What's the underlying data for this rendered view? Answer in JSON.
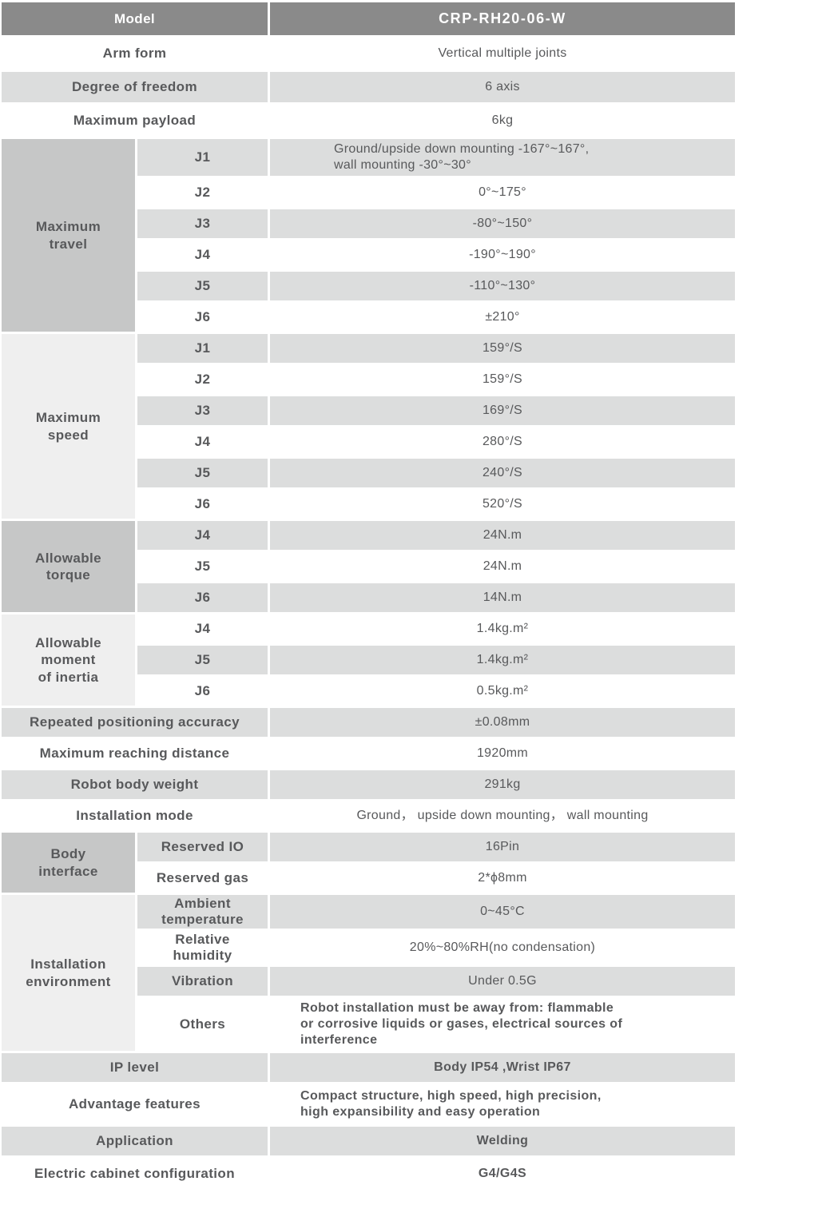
{
  "colors": {
    "header_bg": "#8a8a8a",
    "header_text": "#ffffff",
    "stripe_bg": "#dcdddd",
    "group_dark_bg": "#c6c7c7",
    "group_light_bg": "#efefef",
    "text": "#58595b"
  },
  "table": {
    "header": {
      "label": "Model",
      "value": "CRP-RH20-06-W"
    },
    "arm_form": {
      "label": "Arm form",
      "value": "Vertical multiple joints"
    },
    "degree_of_freedom": {
      "label": "Degree of freedom",
      "value": "6 axis"
    },
    "maximum_payload": {
      "label": "Maximum payload",
      "value": "6kg"
    },
    "maximum_travel": {
      "group": "Maximum\ntravel",
      "rows": [
        {
          "label": "J1",
          "value": "Ground/upside down mounting -167°~167°,\nwall mounting -30°~30°"
        },
        {
          "label": "J2",
          "value": "0°~175°"
        },
        {
          "label": "J3",
          "value": "-80°~150°"
        },
        {
          "label": "J4",
          "value": "-190°~190°"
        },
        {
          "label": "J5",
          "value": "-110°~130°"
        },
        {
          "label": "J6",
          "value": "±210°"
        }
      ]
    },
    "maximum_speed": {
      "group": "Maximum\nspeed",
      "rows": [
        {
          "label": "J1",
          "value": "159°/S"
        },
        {
          "label": "J2",
          "value": "159°/S"
        },
        {
          "label": "J3",
          "value": "169°/S"
        },
        {
          "label": "J4",
          "value": "280°/S"
        },
        {
          "label": "J5",
          "value": "240°/S"
        },
        {
          "label": "J6",
          "value": "520°/S"
        }
      ]
    },
    "allowable_torque": {
      "group": "Allowable\ntorque",
      "rows": [
        {
          "label": "J4",
          "value": "24N.m"
        },
        {
          "label": "J5",
          "value": "24N.m"
        },
        {
          "label": "J6",
          "value": "14N.m"
        }
      ]
    },
    "allowable_moment_of_inertia": {
      "group": "Allowable\nmoment\nof inertia",
      "rows": [
        {
          "label": "J4",
          "value": "1.4kg.m²"
        },
        {
          "label": "J5",
          "value": "1.4kg.m²"
        },
        {
          "label": "J6",
          "value": "0.5kg.m²"
        }
      ]
    },
    "repeated_positioning_accuracy": {
      "label": "Repeated positioning accuracy",
      "value": "±0.08mm"
    },
    "maximum_reaching_distance": {
      "label": "Maximum reaching distance",
      "value": "1920mm"
    },
    "robot_body_weight": {
      "label": "Robot body weight",
      "value": "291kg"
    },
    "installation_mode": {
      "label": "Installation mode",
      "value": "Ground， upside down mounting， wall mounting"
    },
    "body_interface": {
      "group": "Body\ninterface",
      "rows": [
        {
          "label": "Reserved IO",
          "value": "16Pin"
        },
        {
          "label": "Reserved gas",
          "value": "2*ϕ8mm"
        }
      ]
    },
    "installation_environment": {
      "group": "Installation\nenvironment",
      "rows": [
        {
          "label": "Ambient\ntemperature",
          "value": "0~45°C"
        },
        {
          "label": "Relative\nhumidity",
          "value": "20%~80%RH(no condensation)"
        },
        {
          "label": "Vibration",
          "value": "Under 0.5G"
        },
        {
          "label": "Others",
          "value": "Robot installation must be away from: flammable\nor corrosive liquids or gases, electrical sources of\ninterference"
        }
      ]
    },
    "ip_level": {
      "label": "IP level",
      "value": "Body IP54 ,Wrist IP67"
    },
    "advantage_features": {
      "label": "Advantage features",
      "value": "Compact structure, high speed, high precision,\nhigh expansibility and easy operation"
    },
    "application": {
      "label": "Application",
      "value": "Welding"
    },
    "electric_cabinet_configuration": {
      "label": "Electric cabinet configuration",
      "value": "G4/G4S"
    }
  }
}
